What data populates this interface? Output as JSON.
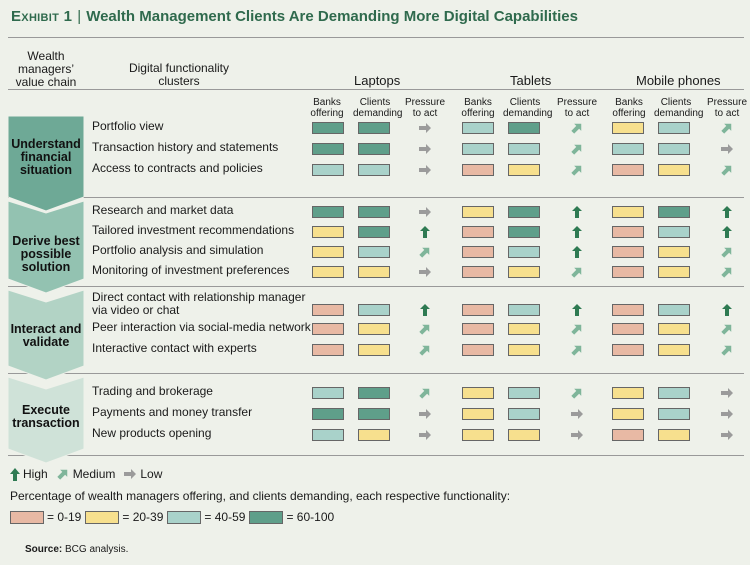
{
  "title": {
    "exhibit": "Exhibit 1",
    "separator": "|",
    "text": "Wealth Management Clients Are Demanding More Digital Capabilities"
  },
  "headers": {
    "value_chain": "Wealth managers’ value chain",
    "clusters": "Digital functionality clusters",
    "devices": [
      "Laptops",
      "Tablets",
      "Mobile phones"
    ],
    "metrics": [
      "Banks offering",
      "Clients demanding",
      "Pressure to act"
    ]
  },
  "colors": {
    "0-19": "#e8b9a4",
    "20-39": "#f7e08e",
    "40-59": "#a9d2ca",
    "60-100": "#5f9f8a",
    "arrow_high": "#2e7a52",
    "arrow_medium": "#7fb59a",
    "arrow_low": "#9b9b9b",
    "chevron_1": "#6ea996",
    "chevron_2": "#93c2b1",
    "chevron_3": "#b2d3c5",
    "chevron_4": "#cfe2d8",
    "title": "#2f6a4d"
  },
  "chart_data": {
    "type": "table",
    "title": "Wealth Management Clients Are Demanding More Digital Capabilities",
    "bins": [
      "0-19",
      "20-39",
      "40-59",
      "60-100"
    ],
    "pressure_levels": [
      "High",
      "Medium",
      "Low"
    ],
    "stages": [
      {
        "name": "Understand financial situation",
        "rows": [
          {
            "label": "Portfolio view",
            "laptops": [
              "60-100",
              "60-100",
              "Low"
            ],
            "tablets": [
              "40-59",
              "60-100",
              "Medium"
            ],
            "mobile": [
              "20-39",
              "40-59",
              "Medium"
            ]
          },
          {
            "label": "Transaction history and statements",
            "laptops": [
              "60-100",
              "60-100",
              "Low"
            ],
            "tablets": [
              "40-59",
              "40-59",
              "Medium"
            ],
            "mobile": [
              "40-59",
              "40-59",
              "Low"
            ]
          },
          {
            "label": "Access to contracts and policies",
            "laptops": [
              "40-59",
              "40-59",
              "Low"
            ],
            "tablets": [
              "0-19",
              "20-39",
              "Medium"
            ],
            "mobile": [
              "0-19",
              "20-39",
              "Medium"
            ]
          }
        ]
      },
      {
        "name": "Derive best possible solution",
        "rows": [
          {
            "label": "Research and market data",
            "laptops": [
              "60-100",
              "60-100",
              "Low"
            ],
            "tablets": [
              "20-39",
              "60-100",
              "High"
            ],
            "mobile": [
              "20-39",
              "60-100",
              "High"
            ]
          },
          {
            "label": "Tailored investment recommendations",
            "laptops": [
              "20-39",
              "60-100",
              "High"
            ],
            "tablets": [
              "0-19",
              "60-100",
              "High"
            ],
            "mobile": [
              "0-19",
              "40-59",
              "High"
            ]
          },
          {
            "label": "Portfolio analysis and simulation",
            "laptops": [
              "20-39",
              "40-59",
              "Medium"
            ],
            "tablets": [
              "0-19",
              "40-59",
              "High"
            ],
            "mobile": [
              "0-19",
              "20-39",
              "Medium"
            ]
          },
          {
            "label": "Monitoring of investment preferences",
            "laptops": [
              "20-39",
              "20-39",
              "Low"
            ],
            "tablets": [
              "0-19",
              "20-39",
              "Medium"
            ],
            "mobile": [
              "0-19",
              "20-39",
              "Medium"
            ]
          }
        ]
      },
      {
        "name": "Interact and validate",
        "rows": [
          {
            "label": "Direct contact with relationship manager via video or chat",
            "laptops": [
              "0-19",
              "40-59",
              "High"
            ],
            "tablets": [
              "0-19",
              "40-59",
              "High"
            ],
            "mobile": [
              "0-19",
              "40-59",
              "High"
            ]
          },
          {
            "label": "Peer interaction via social-media network",
            "laptops": [
              "0-19",
              "20-39",
              "Medium"
            ],
            "tablets": [
              "0-19",
              "20-39",
              "Medium"
            ],
            "mobile": [
              "0-19",
              "20-39",
              "Medium"
            ]
          },
          {
            "label": "Interactive contact with experts",
            "laptops": [
              "0-19",
              "20-39",
              "Medium"
            ],
            "tablets": [
              "0-19",
              "20-39",
              "Medium"
            ],
            "mobile": [
              "0-19",
              "20-39",
              "Medium"
            ]
          }
        ]
      },
      {
        "name": "Execute transaction",
        "rows": [
          {
            "label": "Trading and brokerage",
            "laptops": [
              "40-59",
              "60-100",
              "Medium"
            ],
            "tablets": [
              "20-39",
              "40-59",
              "Medium"
            ],
            "mobile": [
              "20-39",
              "40-59",
              "Low"
            ]
          },
          {
            "label": "Payments and money transfer",
            "laptops": [
              "60-100",
              "60-100",
              "Low"
            ],
            "tablets": [
              "20-39",
              "40-59",
              "Low"
            ],
            "mobile": [
              "20-39",
              "40-59",
              "Low"
            ]
          },
          {
            "label": "New products opening",
            "laptops": [
              "40-59",
              "20-39",
              "Low"
            ],
            "tablets": [
              "20-39",
              "20-39",
              "Low"
            ],
            "mobile": [
              "0-19",
              "20-39",
              "Low"
            ]
          }
        ]
      }
    ]
  },
  "legend": {
    "pressure": [
      {
        "level": "High",
        "label": "High"
      },
      {
        "level": "Medium",
        "label": "Medium"
      },
      {
        "level": "Low",
        "label": "Low"
      }
    ],
    "caption": "Percentage of wealth managers offering, and clients demanding, each respective functionality:",
    "bins": [
      {
        "bin": "0-19",
        "label": "= 0-19"
      },
      {
        "bin": "20-39",
        "label": "= 20-39"
      },
      {
        "bin": "40-59",
        "label": "= 40-59"
      },
      {
        "bin": "60-100",
        "label": "= 60-100"
      }
    ]
  },
  "source": {
    "label": "Source:",
    "text": "BCG analysis."
  }
}
